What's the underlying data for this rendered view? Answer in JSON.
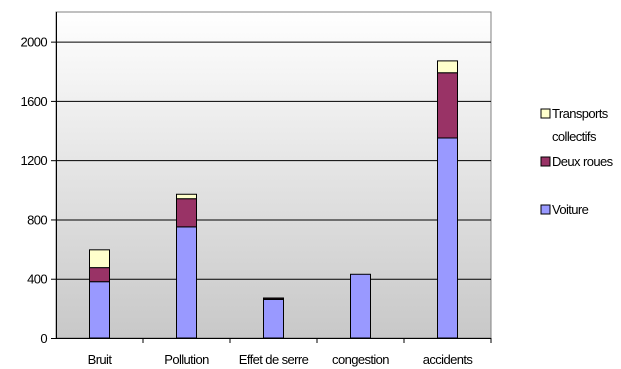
{
  "chart_data": {
    "type": "bar",
    "stacked": true,
    "categories": [
      "Bruit",
      "Pollution",
      "Effet de serre",
      "congestion",
      "accidents"
    ],
    "series": [
      {
        "name": "Voiture",
        "values": [
          380,
          750,
          260,
          430,
          1350
        ],
        "color": "#9999ff"
      },
      {
        "name": "Deux roues",
        "values": [
          95,
          190,
          8,
          0,
          440
        ],
        "color": "#993366"
      },
      {
        "name": "Transports collectifs",
        "values": [
          120,
          30,
          2,
          0,
          80
        ],
        "color": "#ffffcc"
      }
    ],
    "legend_entries": [
      {
        "lines": [
          "Transports",
          "collectifs"
        ],
        "series_index": 2
      },
      {
        "lines": [
          "Deux roues"
        ],
        "series_index": 1
      },
      {
        "lines": [
          "Voiture"
        ],
        "series_index": 0
      }
    ],
    "title": "",
    "xlabel": "",
    "ylabel": "",
    "ylim": [
      0,
      2200
    ],
    "yticks": [
      0,
      400,
      800,
      1200,
      1600,
      2000
    ],
    "grid": true,
    "legend_position": "right",
    "plot_background": "gradient-gray"
  }
}
